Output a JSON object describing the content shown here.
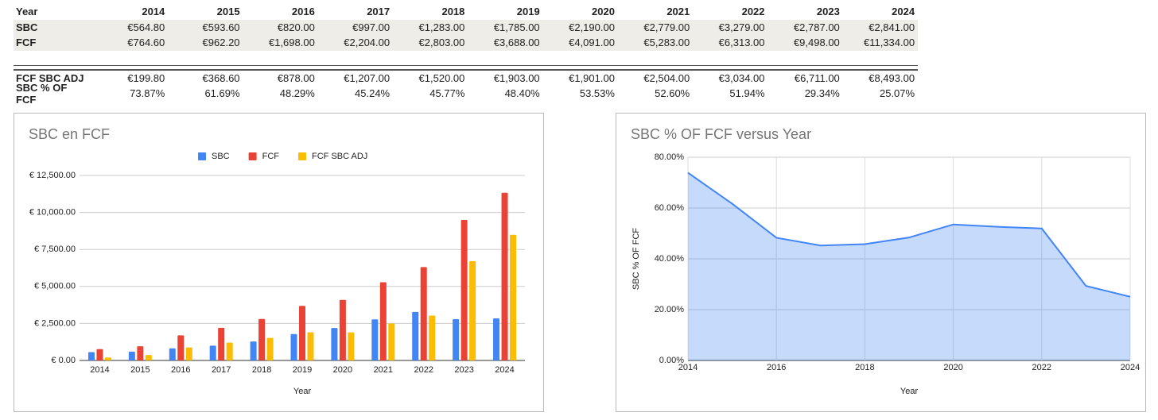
{
  "table": {
    "header": [
      "Year",
      "2014",
      "2015",
      "2016",
      "2017",
      "2018",
      "2019",
      "2020",
      "2021",
      "2022",
      "2023",
      "2024"
    ],
    "rows": [
      [
        "SBC",
        "€564.80",
        "€593.60",
        "€820.00",
        "€997.00",
        "€1,283.00",
        "€1,785.00",
        "€2,190.00",
        "€2,779.00",
        "€3,279.00",
        "€2,787.00",
        "€2,841.00"
      ],
      [
        "FCF",
        "€764.60",
        "€962.20",
        "€1,698.00",
        "€2,204.00",
        "€2,803.00",
        "€3,688.00",
        "€4,091.00",
        "€5,283.00",
        "€6,313.00",
        "€9,498.00",
        "€11,334.00"
      ],
      [
        "FCF SBC ADJ",
        "€199.80",
        "€368.60",
        "€878.00",
        "€1,207.00",
        "€1,520.00",
        "€1,903.00",
        "€1,901.00",
        "€2,504.00",
        "€3,034.00",
        "€6,711.00",
        "€8,493.00"
      ],
      [
        "SBC % OF FCF",
        "73.87%",
        "61.69%",
        "48.29%",
        "45.24%",
        "45.77%",
        "48.40%",
        "53.53%",
        "52.60%",
        "51.94%",
        "29.34%",
        "25.07%"
      ]
    ]
  },
  "chart_data": [
    {
      "type": "bar",
      "title": "SBC en FCF",
      "x_label": "Year",
      "categories": [
        "2014",
        "2015",
        "2016",
        "2017",
        "2018",
        "2019",
        "2020",
        "2021",
        "2022",
        "2023",
        "2024"
      ],
      "series": [
        {
          "name": "SBC",
          "color": "#4285f4",
          "values": [
            564.8,
            593.6,
            820,
            997,
            1283,
            1785,
            2190,
            2779,
            3279,
            2787,
            2841
          ]
        },
        {
          "name": "FCF",
          "color": "#ea4335",
          "values": [
            764.6,
            962.2,
            1698,
            2204,
            2803,
            3688,
            4091,
            5283,
            6313,
            9498,
            11334
          ]
        },
        {
          "name": "FCF SBC ADJ",
          "color": "#fbbc04",
          "values": [
            199.8,
            368.6,
            878,
            1207,
            1520,
            1903,
            1901,
            2504,
            3034,
            6711,
            8493
          ]
        }
      ],
      "ylim": [
        0,
        12500
      ],
      "yticks": [
        {
          "value": 0,
          "label": "€ 0.00"
        },
        {
          "value": 2500,
          "label": "€ 2,500.00"
        },
        {
          "value": 5000,
          "label": "€ 5,000.00"
        },
        {
          "value": 7500,
          "label": "€ 7,500.00"
        },
        {
          "value": 10000,
          "label": "€ 10,000.00"
        },
        {
          "value": 12500,
          "label": "€ 12,500.00"
        }
      ],
      "grid": true,
      "legend": "top"
    },
    {
      "type": "area",
      "title": "SBC % OF FCF versus Year",
      "x_label": "Year",
      "y_label": "SBC % OF FCF",
      "x": [
        2014,
        2015,
        2016,
        2017,
        2018,
        2019,
        2020,
        2021,
        2022,
        2023,
        2024
      ],
      "series": [
        {
          "name": "SBC % OF FCF",
          "color": "#4285f4",
          "values": [
            73.87,
            61.69,
            48.29,
            45.24,
            45.77,
            48.4,
            53.53,
            52.6,
            51.94,
            29.34,
            25.07
          ]
        }
      ],
      "xlim": [
        2014,
        2024
      ],
      "xticks": [
        2014,
        2016,
        2018,
        2020,
        2022,
        2024
      ],
      "ylim": [
        0,
        80
      ],
      "yticks": [
        {
          "value": 0,
          "label": "0.00%"
        },
        {
          "value": 20,
          "label": "20.00%"
        },
        {
          "value": 40,
          "label": "40.00%"
        },
        {
          "value": 60,
          "label": "60.00%"
        },
        {
          "value": 80,
          "label": "80.00%"
        }
      ],
      "grid": true
    }
  ]
}
